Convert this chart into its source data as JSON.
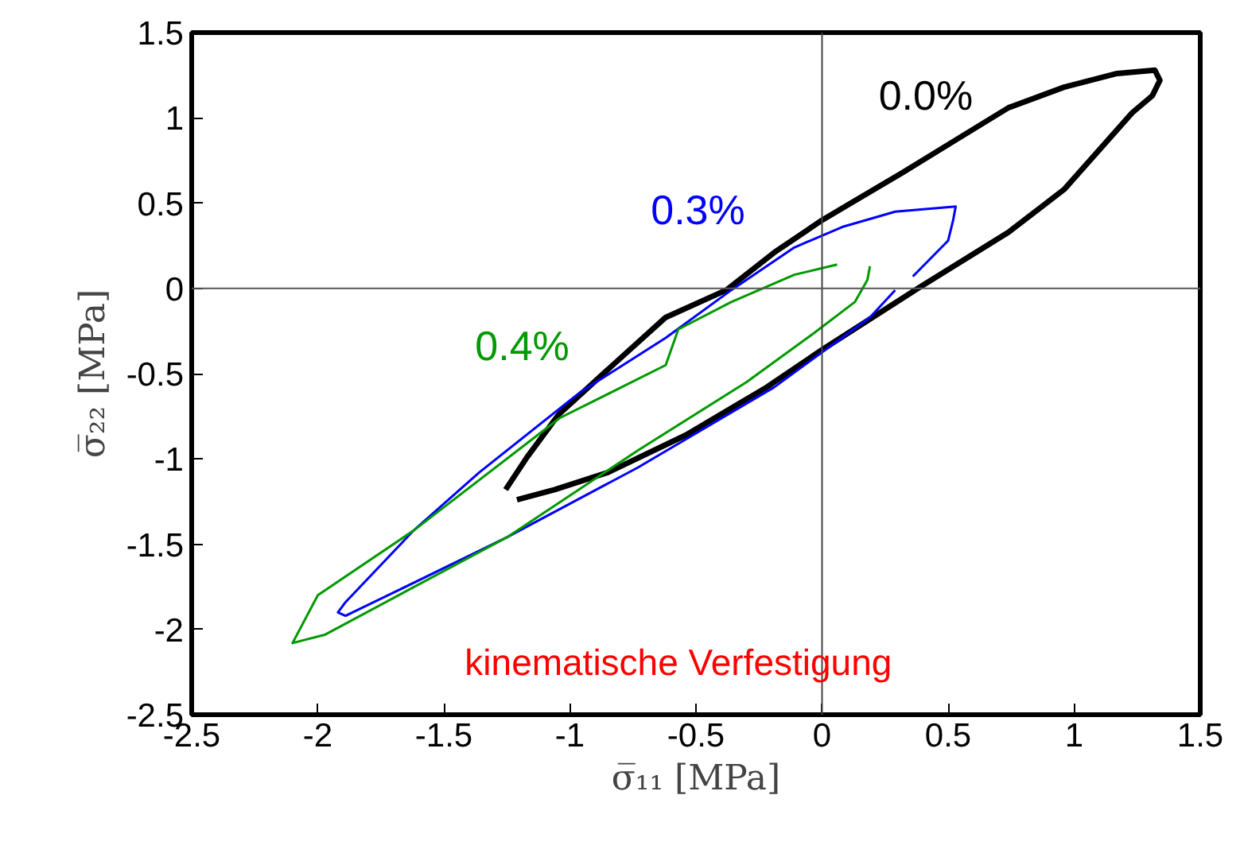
{
  "chart_data": {
    "type": "line",
    "xlabel": "σ̅₁₁ [MPa]",
    "ylabel": "σ̅₂₂ [MPa]",
    "xlim": [
      -2.5,
      1.5
    ],
    "ylim": [
      -2.5,
      1.5
    ],
    "xticks": [
      -2.5,
      -2,
      -1.5,
      -1,
      -0.5,
      0,
      0.5,
      1,
      1.5
    ],
    "yticks": [
      -2.5,
      -2,
      -1.5,
      -1,
      -0.5,
      0,
      0.5,
      1,
      1.5
    ],
    "grid": false,
    "marker": "none",
    "line_style": "solid",
    "ref_lines": [
      {
        "axis": "x",
        "value": 0,
        "color": "#444444"
      },
      {
        "axis": "y",
        "value": 0,
        "color": "#555555"
      }
    ],
    "annotations": [
      "kinematische Verfestigung"
    ],
    "series": [
      {
        "name": "0.0%",
        "color": "#000000",
        "x": [
          -1.255,
          -1.17,
          -1.045,
          -0.83,
          -0.62,
          -0.38,
          -0.19,
          0,
          0.32,
          0.53,
          0.74,
          0.96,
          1.17,
          1.32,
          1.34,
          1.31,
          1.23,
          0.96,
          0.74,
          0.38,
          0,
          -0.22,
          -0.54,
          -0.85,
          -1.06,
          -1.21
        ],
        "values": [
          -1.18,
          -0.99,
          -0.74,
          -0.45,
          -0.17,
          -0.01,
          0.21,
          0.4,
          0.68,
          0.87,
          1.06,
          1.18,
          1.26,
          1.28,
          1.22,
          1.13,
          1.03,
          0.58,
          0.33,
          0.0,
          -0.36,
          -0.58,
          -0.86,
          -1.08,
          -1.18,
          -1.24
        ]
      },
      {
        "name": "0.3%",
        "color": "#0000ff",
        "x": [
          0.36,
          0.5,
          0.52,
          0.53,
          0.29,
          0.08,
          -0.11,
          -0.36,
          -0.62,
          -0.96,
          -1.36,
          -1.62,
          -1.89,
          -1.92,
          -1.89,
          -1.68,
          -1.25,
          -0.73,
          -0.19,
          0.19,
          0.29
        ],
        "values": [
          0.07,
          0.28,
          0.4,
          0.48,
          0.45,
          0.36,
          0.24,
          -0.01,
          -0.29,
          -0.61,
          -1.08,
          -1.42,
          -1.84,
          -1.9,
          -1.92,
          -1.77,
          -1.46,
          -1.05,
          -0.58,
          -0.17,
          -0.01
        ]
      },
      {
        "name": "0.4%",
        "color": "#009900",
        "x": [
          0.06,
          -0.11,
          -0.36,
          -0.57,
          -0.62,
          -1.04,
          -1.62,
          -2.0,
          -2.1,
          -1.97,
          -1.68,
          -1.25,
          -0.73,
          -0.3,
          -0.03,
          0.13,
          0.18,
          0.19
        ],
        "values": [
          0.14,
          0.08,
          -0.08,
          -0.24,
          -0.45,
          -0.76,
          -1.42,
          -1.8,
          -2.08,
          -2.03,
          -1.8,
          -1.46,
          -0.95,
          -0.55,
          -0.26,
          -0.08,
          0.05,
          0.13
        ]
      }
    ]
  }
}
